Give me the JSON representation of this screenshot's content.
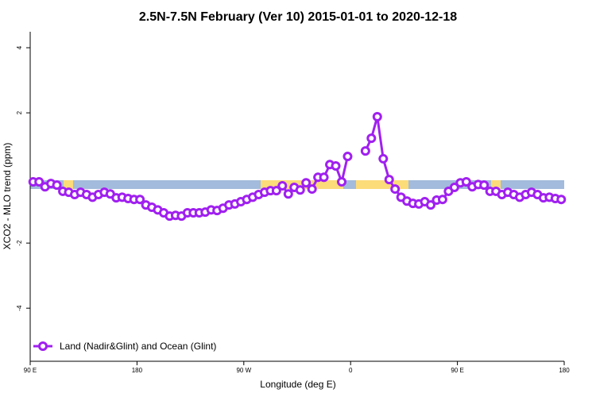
{
  "chart_data": {
    "type": "line",
    "title": "2.5N-7.5N February (Ver 10)   2015-01-01 to 2020-12-18",
    "x_label": "Longitude (deg E)",
    "y_label": "XCO2 - MLO trend (ppm)",
    "x": [
      92.5,
      97.5,
      102.5,
      107.5,
      112.5,
      117.5,
      122.5,
      127.5,
      132.5,
      137.5,
      142.5,
      147.5,
      152.5,
      157.5,
      162.5,
      167.5,
      172.5,
      177.5,
      182.5,
      187.5,
      192.5,
      197.5,
      202.5,
      207.5,
      212.5,
      217.5,
      222.5,
      227.5,
      232.5,
      237.5,
      242.5,
      247.5,
      252.5,
      257.5,
      262.5,
      267.5,
      272.5,
      277.5,
      282.5,
      287.5,
      292.5,
      297.5,
      302.5,
      307.5,
      312.5,
      317.5,
      322.5,
      327.5,
      332.5,
      337.5,
      342.5,
      347.5,
      352.5,
      357.5,
      362.5,
      367.5,
      372.5,
      377.5,
      382.5,
      387.5,
      392.5,
      397.5,
      402.5,
      407.5,
      412.5,
      417.5,
      422.5,
      427.5,
      432.5,
      437.5,
      442.5,
      447.5,
      452.5,
      457.5,
      462.5,
      467.5,
      472.5,
      477.5,
      482.5,
      487.5,
      492.5,
      497.5,
      502.5,
      507.5,
      512.5,
      517.5,
      522.5,
      527.5,
      532.5,
      537.5
    ],
    "series": [
      {
        "name": "Land (Nadir&Glint) and Ocean (Glint)",
        "color": "#a020f0",
        "values": [
          -0.12,
          -0.12,
          -0.27,
          -0.17,
          -0.22,
          -0.41,
          -0.44,
          -0.51,
          -0.44,
          -0.51,
          -0.59,
          -0.51,
          -0.44,
          -0.49,
          -0.61,
          -0.59,
          -0.63,
          -0.66,
          -0.66,
          -0.83,
          -0.9,
          -0.98,
          -1.07,
          -1.17,
          -1.15,
          -1.17,
          -1.07,
          -1.07,
          -1.07,
          -1.05,
          -0.98,
          -1.0,
          -0.93,
          -0.83,
          -0.8,
          -0.73,
          -0.66,
          -0.59,
          -0.51,
          -0.44,
          -0.39,
          -0.39,
          -0.24,
          -0.49,
          -0.29,
          -0.37,
          -0.15,
          -0.34,
          0.02,
          0.02,
          0.41,
          0.37,
          -0.12,
          0.66,
          null,
          null,
          0.83,
          1.22,
          1.88,
          0.59,
          -0.05,
          -0.34,
          -0.59,
          -0.71,
          -0.78,
          -0.8,
          -0.73,
          -0.83,
          -0.68,
          -0.66,
          -0.41,
          -0.29,
          -0.15,
          -0.12,
          -0.27,
          -0.2,
          -0.22,
          -0.41,
          -0.41,
          -0.51,
          -0.44,
          -0.51,
          -0.59,
          -0.51,
          -0.44,
          -0.51,
          -0.61,
          -0.59,
          -0.63,
          -0.66
        ]
      }
    ],
    "xlim": [
      90,
      540
    ],
    "xticks": [
      {
        "value": 90,
        "label": "90 E"
      },
      {
        "value": 180,
        "label": "180"
      },
      {
        "value": 270,
        "label": "90 W"
      },
      {
        "value": 360,
        "label": "0"
      },
      {
        "value": 450,
        "label": "90 E"
      },
      {
        "value": 540,
        "label": "180"
      }
    ],
    "ylim": [
      -5.63,
      4.49
    ],
    "yticks": [
      -4,
      -2,
      2,
      4
    ],
    "legend": "bottom-left"
  }
}
